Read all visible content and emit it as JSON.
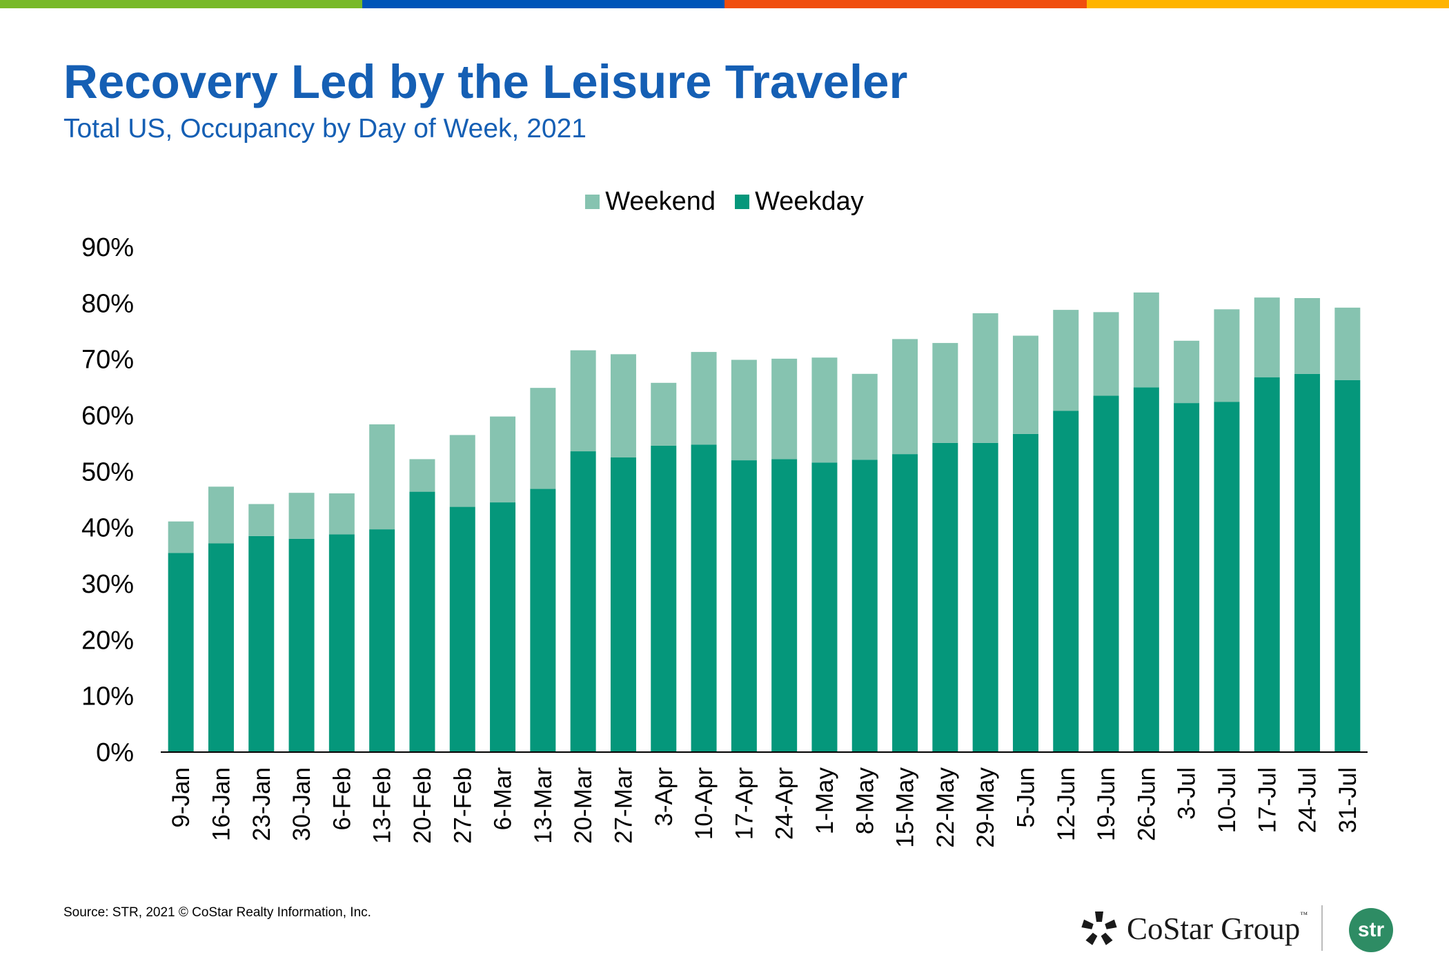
{
  "colors": {
    "stripe": [
      "#78b928",
      "#0055b8",
      "#f04e0f",
      "#ffb400"
    ],
    "title": "#155fb4",
    "weekend": "#86c3b0",
    "weekday": "#05977b",
    "axis": "#000000",
    "str_logo": "#2e8c64"
  },
  "title": "Recovery Led by the Leisure Traveler",
  "subtitle": "Total US, Occupancy by Day of Week, 2021",
  "legend": {
    "weekend": "Weekend",
    "weekday": "Weekday"
  },
  "chart_data": {
    "type": "bar",
    "stacked": true,
    "categories": [
      "9-Jan",
      "16-Jan",
      "23-Jan",
      "30-Jan",
      "6-Feb",
      "13-Feb",
      "20-Feb",
      "27-Feb",
      "6-Mar",
      "13-Mar",
      "20-Mar",
      "27-Mar",
      "3-Apr",
      "10-Apr",
      "17-Apr",
      "24-Apr",
      "1-May",
      "8-May",
      "15-May",
      "22-May",
      "29-May",
      "5-Jun",
      "12-Jun",
      "19-Jun",
      "26-Jun",
      "3-Jul",
      "10-Jul",
      "17-Jul",
      "24-Jul",
      "31-Jul"
    ],
    "series": [
      {
        "name": "Weekday",
        "values": [
          35.5,
          37.2,
          38.5,
          38.0,
          38.8,
          39.7,
          46.4,
          43.7,
          44.5,
          46.9,
          53.6,
          52.5,
          54.6,
          54.8,
          52.0,
          52.2,
          51.6,
          52.1,
          53.1,
          55.1,
          55.1,
          56.7,
          60.8,
          63.5,
          65.0,
          62.2,
          62.4,
          66.8,
          67.4,
          66.3
        ]
      },
      {
        "name": "Weekend",
        "values": [
          5.6,
          10.1,
          5.7,
          8.2,
          7.3,
          18.7,
          5.8,
          12.8,
          15.3,
          18.0,
          18.0,
          18.4,
          11.2,
          16.5,
          17.9,
          17.9,
          18.7,
          15.3,
          20.5,
          17.8,
          23.1,
          17.5,
          18.0,
          14.9,
          16.9,
          11.1,
          16.5,
          14.2,
          13.5,
          12.9
        ]
      }
    ],
    "ylim": [
      0,
      90
    ],
    "yticks": [
      "0%",
      "10%",
      "20%",
      "30%",
      "40%",
      "50%",
      "60%",
      "70%",
      "80%",
      "90%"
    ],
    "ylabel": "",
    "xlabel": "",
    "grid": false,
    "legend_position": "top-center"
  },
  "source": "Source: STR, 2021 © CoStar Realty Information, Inc.",
  "logos": {
    "costar": "CoStar Group",
    "costar_tm": "™",
    "str": "str"
  }
}
